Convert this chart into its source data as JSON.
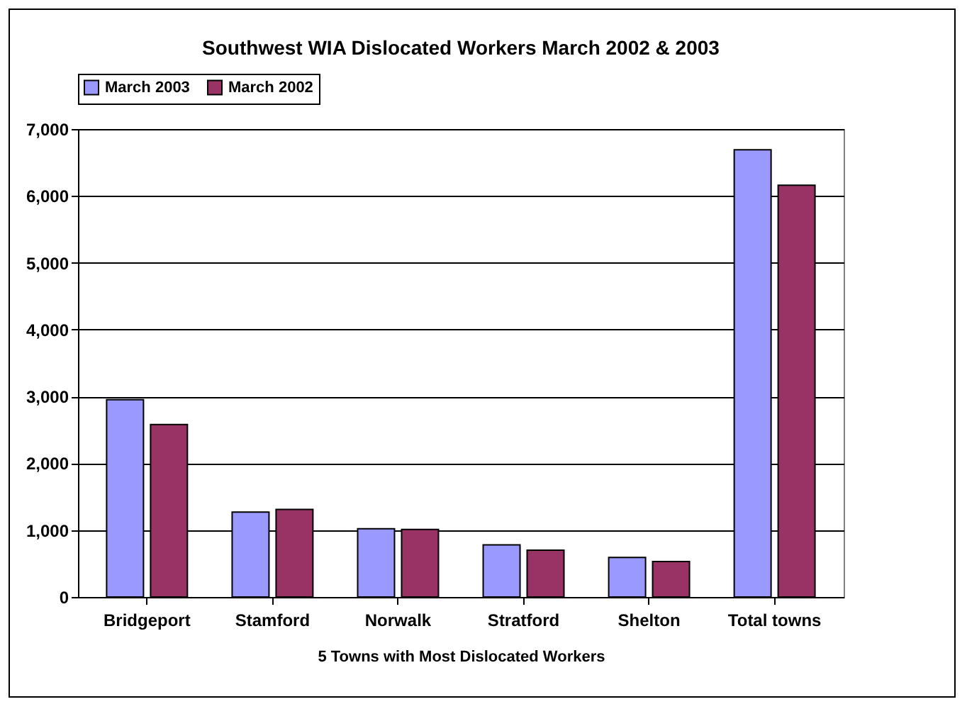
{
  "chart_data": {
    "type": "bar",
    "title": "Southwest WIA Dislocated Workers March 2002 & 2003",
    "xlabel": "5 Towns with Most Dislocated Workers",
    "categories": [
      "Bridgeport",
      "Stamford",
      "Norwalk",
      "Stratford",
      "Shelton",
      "Total towns"
    ],
    "series": [
      {
        "name": "March 2003",
        "color": "#9999ff",
        "values": [
          2950,
          1270,
          1020,
          780,
          590,
          6690
        ]
      },
      {
        "name": "March 2002",
        "color": "#993366",
        "values": [
          2580,
          1310,
          1010,
          700,
          530,
          6160
        ]
      }
    ],
    "ylim": [
      0,
      7000
    ],
    "yticks": [
      {
        "value": 0,
        "label": "0"
      },
      {
        "value": 1000,
        "label": "1,000"
      },
      {
        "value": 2000,
        "label": "2,000"
      },
      {
        "value": 3000,
        "label": "3,000"
      },
      {
        "value": 4000,
        "label": "4,000"
      },
      {
        "value": 5000,
        "label": "5,000"
      },
      {
        "value": 6000,
        "label": "6,000"
      },
      {
        "value": 7000,
        "label": "7,000"
      }
    ],
    "grid": "y",
    "legend": "top"
  }
}
